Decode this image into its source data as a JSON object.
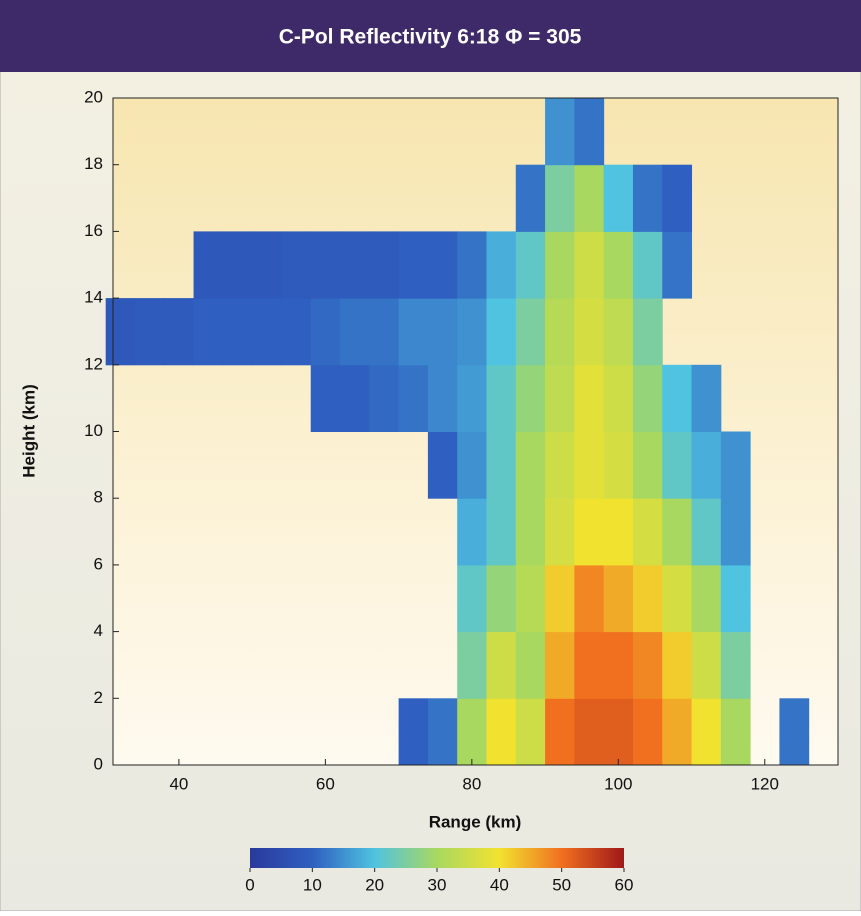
{
  "chart_data": {
    "type": "heatmap",
    "title": "C-Pol Reflectivity   6:18   Φ = 305",
    "x_label": "Range (km)",
    "y_label": "Height (km)",
    "x": [
      32,
      36,
      40,
      44,
      48,
      52,
      56,
      60,
      64,
      68,
      72,
      76,
      80,
      84,
      88,
      92,
      96,
      100,
      104,
      108,
      112,
      116,
      120,
      124
    ],
    "y": [
      1,
      3,
      5,
      7,
      9,
      11,
      13,
      15,
      17,
      19
    ],
    "cell_width": 4,
    "cell_height": 2,
    "z": [
      [
        null,
        null,
        null,
        null,
        null,
        null,
        null,
        null,
        null,
        null,
        10,
        12,
        30,
        40,
        35,
        50,
        52,
        52,
        50,
        45,
        40,
        30,
        null,
        12
      ],
      [
        null,
        null,
        null,
        null,
        null,
        null,
        null,
        null,
        null,
        null,
        null,
        null,
        25,
        35,
        30,
        45,
        50,
        50,
        48,
        42,
        35,
        25,
        null,
        null
      ],
      [
        null,
        null,
        null,
        null,
        null,
        null,
        null,
        null,
        null,
        null,
        null,
        null,
        22,
        28,
        32,
        42,
        48,
        45,
        42,
        36,
        30,
        20,
        null,
        null
      ],
      [
        null,
        null,
        null,
        null,
        null,
        null,
        null,
        null,
        null,
        null,
        null,
        null,
        18,
        22,
        30,
        36,
        40,
        40,
        36,
        30,
        22,
        15,
        null,
        null
      ],
      [
        null,
        null,
        null,
        null,
        null,
        null,
        null,
        null,
        null,
        null,
        null,
        10,
        15,
        22,
        30,
        35,
        38,
        36,
        30,
        22,
        18,
        15,
        null,
        null
      ],
      [
        null,
        null,
        null,
        null,
        null,
        null,
        null,
        10,
        10,
        11,
        12,
        14,
        16,
        22,
        28,
        33,
        38,
        35,
        28,
        20,
        15,
        null,
        null,
        null
      ],
      [
        8,
        9,
        9,
        10,
        10,
        10,
        10,
        11,
        12,
        12,
        14,
        14,
        15,
        20,
        25,
        32,
        36,
        33,
        25,
        null,
        null,
        null,
        null,
        null
      ],
      [
        null,
        null,
        null,
        8,
        8,
        8,
        9,
        9,
        9,
        9,
        10,
        10,
        12,
        18,
        22,
        30,
        35,
        30,
        22,
        12,
        null,
        null,
        null,
        null
      ],
      [
        null,
        null,
        null,
        null,
        null,
        null,
        null,
        null,
        null,
        null,
        null,
        null,
        null,
        null,
        12,
        25,
        30,
        20,
        12,
        10,
        null,
        null,
        null,
        null
      ],
      [
        null,
        null,
        null,
        null,
        null,
        null,
        null,
        null,
        null,
        null,
        null,
        null,
        null,
        null,
        null,
        15,
        12,
        null,
        null,
        null,
        null,
        null,
        null,
        null
      ]
    ],
    "xlim": [
      31,
      130
    ],
    "ylim": [
      0,
      20
    ],
    "xticks": [
      40,
      60,
      80,
      100,
      120
    ],
    "yticks": [
      0,
      2,
      4,
      6,
      8,
      10,
      12,
      14,
      16,
      18,
      20
    ],
    "colorbar": {
      "lim": [
        0,
        60
      ],
      "ticks": [
        0,
        10,
        20,
        30,
        40,
        50,
        60
      ],
      "colors": [
        "#2a3a9c",
        "#2f5fc0",
        "#4fc3e0",
        "#a8d860",
        "#f2e230",
        "#f07020",
        "#a01818"
      ]
    }
  }
}
